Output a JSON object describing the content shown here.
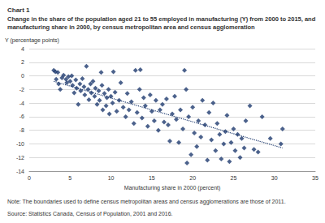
{
  "chart_data": {
    "type": "scatter",
    "title": "Chart 1",
    "subtitle": "Change in the share of the population aged 21 to 55 employed in manufacturing (Y) from 2000 to 2015, and manufacturing share in 2000, by census metropolitan area and census agglomeration",
    "y_label": "Y (percentage points)",
    "x_label": "Manufacturing share in 2000 (percent)",
    "note": "Note: The boundaries used to define census metropolitan areas and census agglomerations are those of 2011.",
    "source": "Source: Statistics Canada, Census of Population, 2001 and 2016.",
    "xlim": [
      0,
      35
    ],
    "xticks": [
      0,
      5,
      10,
      15,
      20,
      25,
      30,
      35
    ],
    "ylim": [
      -14,
      4
    ],
    "yticks": [
      -14,
      -12,
      -10,
      -8,
      -6,
      -4,
      -2,
      0,
      2,
      4
    ],
    "grid": true,
    "series": [
      {
        "type": "scatter",
        "color": "#1f3b6f",
        "marker": "diamond",
        "x": [
          3.0,
          3.2,
          3.3,
          3.5,
          3.6,
          3.8,
          4.0,
          4.2,
          4.5,
          4.6,
          4.8,
          5.0,
          5.2,
          5.3,
          5.5,
          5.7,
          5.8,
          6.0,
          6.2,
          6.3,
          6.5,
          6.7,
          6.8,
          7.0,
          7.2,
          7.3,
          7.5,
          7.6,
          7.8,
          8.0,
          8.1,
          8.3,
          8.5,
          8.6,
          8.8,
          8.9,
          9.0,
          9.2,
          9.4,
          9.5,
          9.7,
          9.8,
          10.0,
          10.2,
          10.3,
          10.5,
          10.7,
          11.0,
          11.2,
          11.5,
          11.8,
          12.0,
          12.2,
          12.5,
          12.8,
          13.0,
          13.2,
          13.5,
          13.6,
          13.8,
          14.0,
          14.2,
          14.5,
          14.8,
          15.0,
          15.3,
          15.5,
          15.8,
          16.0,
          16.3,
          16.5,
          16.8,
          17.0,
          17.2,
          17.5,
          17.8,
          18.0,
          18.3,
          18.5,
          18.8,
          19.0,
          19.2,
          19.3,
          19.5,
          19.8,
          20.0,
          20.2,
          20.5,
          20.7,
          21.0,
          21.2,
          21.5,
          21.8,
          22.0,
          22.3,
          22.5,
          22.8,
          23.0,
          23.3,
          23.5,
          23.8,
          24.0,
          24.2,
          24.5,
          24.7,
          25.0,
          25.2,
          25.5,
          25.8,
          26.0,
          26.3,
          26.5,
          27.0,
          27.5,
          28.0,
          28.5,
          29.5,
          30.8,
          31.0
        ],
        "values": [
          0.8,
          0.6,
          -0.5,
          0.5,
          -1.2,
          -2.0,
          -0.3,
          0.1,
          -0.5,
          -1.0,
          -0.1,
          -0.8,
          0.0,
          -1.4,
          -2.5,
          -0.6,
          -1.8,
          -4.2,
          -1.2,
          -2.2,
          -0.4,
          -1.6,
          -2.8,
          1.4,
          -2.0,
          -3.5,
          -1.2,
          -2.5,
          -0.8,
          -3.0,
          -1.8,
          -4.2,
          -2.2,
          -3.6,
          0.5,
          -1.4,
          -5.0,
          -2.6,
          -4.4,
          -3.2,
          -2.0,
          -5.6,
          -3.0,
          -4.0,
          0.6,
          -2.4,
          -5.2,
          -3.6,
          -1.0,
          -4.6,
          -6.0,
          -2.6,
          -5.0,
          -3.8,
          -7.0,
          0.8,
          -5.4,
          -2.0,
          0.9,
          -6.2,
          -3.2,
          -4.4,
          -7.4,
          -2.8,
          -5.2,
          -6.6,
          -3.6,
          -8.0,
          -5.0,
          -4.2,
          -6.8,
          -3.4,
          -7.2,
          -9.6,
          -5.6,
          -3.0,
          -6.4,
          -9.8,
          -5.0,
          -7.8,
          0.8,
          -2.0,
          -12.8,
          -6.0,
          -11.6,
          -4.6,
          -8.4,
          -10.4,
          -6.6,
          -9.0,
          -3.6,
          -7.2,
          -12.4,
          -5.4,
          -9.4,
          -4.0,
          -11.0,
          -7.0,
          -8.6,
          -12.2,
          -10.0,
          -8.2,
          -5.8,
          -12.6,
          -9.8,
          -7.8,
          -11.0,
          -8.6,
          -12.0,
          -9.2,
          -10.6,
          -6.6,
          -4.4,
          -10.8,
          -11.2,
          -6.0,
          -9.2,
          -10.0,
          -7.8
        ]
      },
      {
        "type": "line",
        "color": "#1f3b6f",
        "line_style": "dotted",
        "x": [
          3,
          31
        ],
        "values": [
          -0.8,
          -10.6
        ]
      }
    ]
  }
}
